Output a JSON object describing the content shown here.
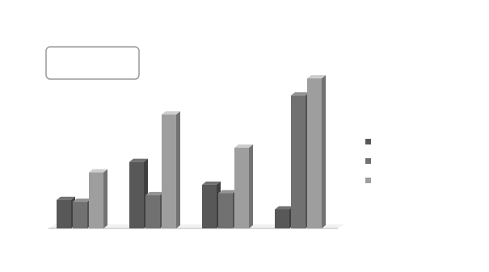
{
  "chart_data": {
    "type": "bar",
    "style": "3d-grouped",
    "title": "",
    "inset_label": "",
    "categories": [
      "",
      "",
      "",
      ""
    ],
    "category_sublabels": [
      "",
      "",
      "",
      ""
    ],
    "series": [
      {
        "name": "",
        "values": [
          30,
          70,
          46,
          20
        ],
        "color": "#585858"
      },
      {
        "name": "",
        "values": [
          28,
          35,
          37,
          140
        ],
        "color": "#717171"
      },
      {
        "name": "",
        "values": [
          59,
          120,
          85,
          158
        ],
        "color": "#9e9e9e"
      }
    ],
    "data_labels": [
      [
        "",
        "",
        ""
      ],
      [
        "",
        "",
        ""
      ],
      [
        "",
        "",
        ""
      ],
      [
        "",
        "",
        ""
      ]
    ],
    "ylim": [
      0,
      170
    ],
    "grid": false,
    "legend": {
      "position": "right"
    }
  }
}
